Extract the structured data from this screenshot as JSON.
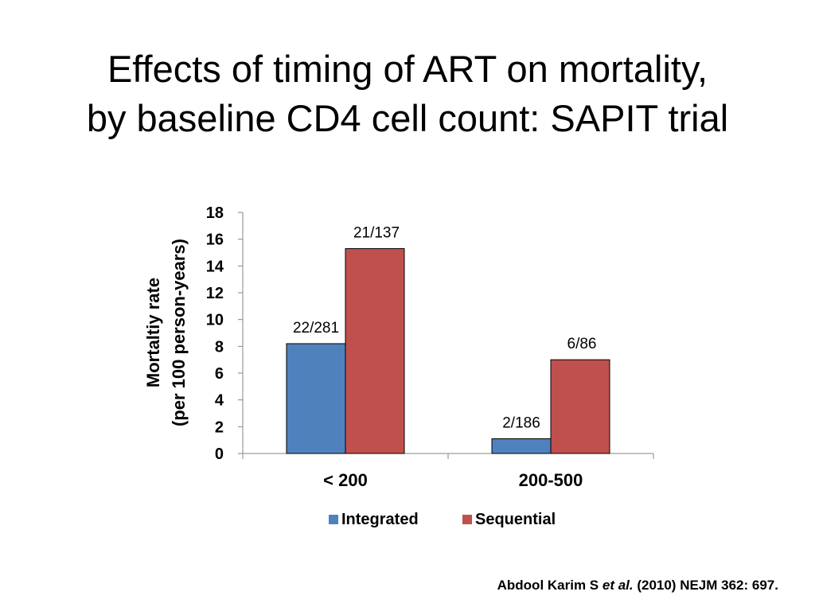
{
  "slide": {
    "title_line1": "Effects of timing of ART on mortality,",
    "title_line2": "by baseline CD4 cell count: SAPIT trial",
    "citation_pre": "Abdool Karim S ",
    "citation_em": "et al.",
    "citation_post": " (2010) NEJM 362: 697."
  },
  "chart_data": {
    "type": "bar",
    "categories": [
      "< 200",
      "200-500"
    ],
    "series": [
      {
        "name": "Integrated",
        "values": [
          8.2,
          1.1
        ],
        "labels": [
          "22/281",
          "2/186"
        ],
        "color": "#4f81bd"
      },
      {
        "name": "Sequential",
        "values": [
          15.3,
          7.0
        ],
        "labels": [
          "21/137",
          "6/86"
        ],
        "color": "#c0504d"
      }
    ],
    "ylabel_line1": "Mortaltiy rate",
    "ylabel_line2": "(per 100 person-years)",
    "ylim": [
      0,
      18
    ],
    "yticks": [
      0,
      2,
      4,
      6,
      8,
      10,
      12,
      14,
      16,
      18
    ],
    "grid": false,
    "legend": "bottom"
  }
}
